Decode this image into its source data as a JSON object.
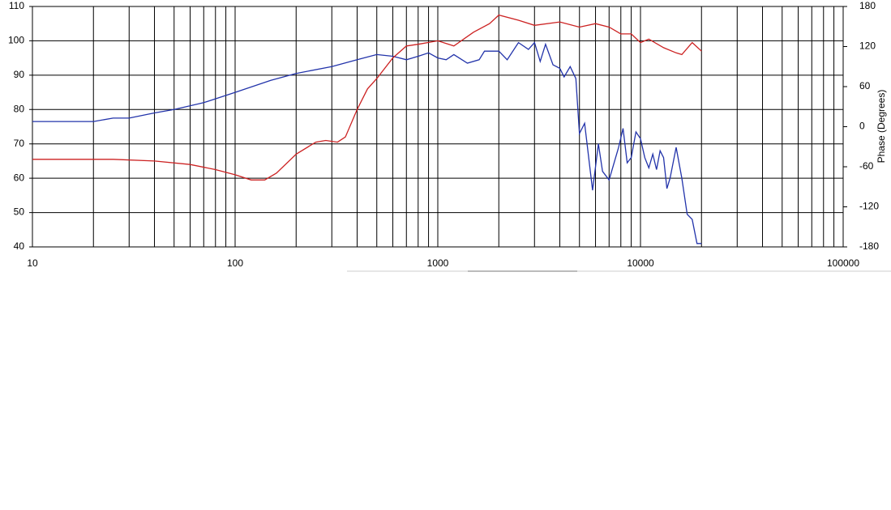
{
  "chart_data": {
    "type": "line",
    "y2_label": "Phase (Degrees)",
    "log_x": true,
    "grid": true,
    "xlim": [
      10,
      100000
    ],
    "xticks": [
      10,
      100,
      1000,
      10000,
      100000
    ],
    "ylim": [
      40,
      110
    ],
    "yticks": [
      40,
      50,
      60,
      70,
      80,
      90,
      100,
      110
    ],
    "y2lim": [
      -180,
      180
    ],
    "y2ticks": [
      -180,
      -120,
      -60,
      0,
      60,
      120,
      180
    ],
    "series": [
      {
        "color": "#2233aa",
        "x": [
          10,
          20,
          25,
          30,
          40,
          50,
          70,
          100,
          150,
          200,
          300,
          400,
          500,
          600,
          700,
          800,
          900,
          1000,
          1100,
          1200,
          1400,
          1600,
          1700,
          2000,
          2200,
          2500,
          2800,
          3000,
          3200,
          3400,
          3700,
          4000,
          4200,
          4500,
          4800,
          5000,
          5300,
          5800,
          6200,
          6500,
          7000,
          7800,
          8200,
          8600,
          9000,
          9500,
          10000,
          10500,
          11000,
          11500,
          12000,
          12500,
          13000,
          13500,
          14000,
          15000,
          16000,
          17000,
          18000,
          19000,
          20000
        ],
        "values": [
          76.5,
          76.5,
          77.5,
          77.5,
          79,
          80,
          82,
          85,
          88.5,
          90.5,
          92.5,
          94.5,
          96,
          95.5,
          94.5,
          95.5,
          96.5,
          95,
          94.5,
          96,
          93.5,
          94.5,
          97,
          97,
          94.5,
          99.5,
          97.5,
          99.5,
          94,
          99,
          93,
          92,
          89.5,
          92.5,
          89,
          73,
          76,
          56.5,
          70,
          62,
          59.5,
          69,
          74.5,
          64.5,
          66,
          73.5,
          71.5,
          66,
          63,
          67,
          62.5,
          68,
          66,
          57,
          60,
          69,
          60,
          49.5,
          48,
          41,
          41
        ]
      },
      {
        "color": "#cc2222",
        "x": [
          10,
          25,
          40,
          60,
          80,
          100,
          120,
          140,
          160,
          200,
          250,
          280,
          320,
          350,
          400,
          450,
          500,
          600,
          700,
          800,
          1000,
          1200,
          1500,
          1800,
          2000,
          2500,
          3000,
          4000,
          5000,
          6000,
          7000,
          8000,
          9000,
          10000,
          11000,
          13000,
          15000,
          16000,
          18000,
          20000
        ],
        "values": [
          65.5,
          65.5,
          65,
          64,
          62.5,
          61,
          59.5,
          59.5,
          61.5,
          67,
          70.5,
          71,
          70.5,
          72,
          80,
          86,
          89,
          95,
          98.5,
          99,
          100,
          98.5,
          102.5,
          105,
          107.5,
          106,
          104.5,
          105.5,
          104,
          105,
          104,
          102,
          102,
          99.5,
          100.5,
          98,
          96.5,
          96,
          99.5,
          97
        ]
      }
    ]
  }
}
